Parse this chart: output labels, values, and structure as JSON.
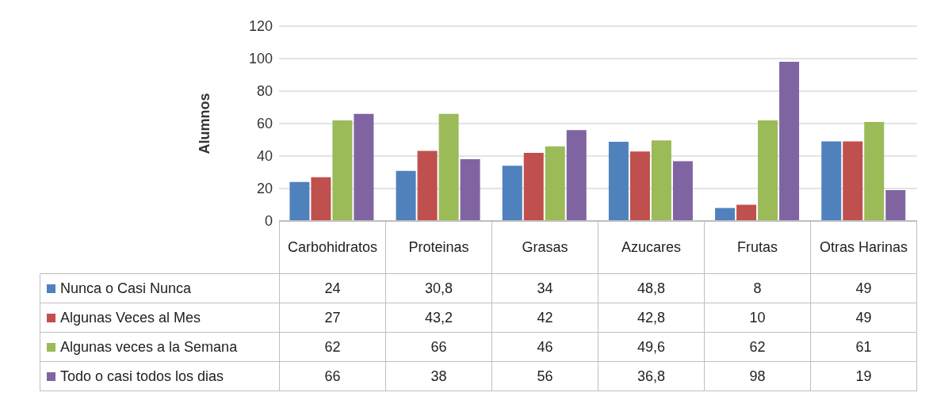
{
  "chart_data": {
    "type": "bar",
    "ylabel": "Alumnos",
    "categories": [
      "Carbohidratos",
      "Proteinas",
      "Grasas",
      "Azucares",
      "Frutas",
      "Otras Harinas"
    ],
    "series": [
      {
        "name": "Nunca o Casi Nunca",
        "color": "#4f81bd",
        "values": [
          24,
          30.8,
          34,
          48.8,
          8,
          49
        ],
        "value_labels": [
          "24",
          "30,8",
          "34",
          "48,8",
          "8",
          "49"
        ]
      },
      {
        "name": "Algunas Veces al Mes",
        "color": "#c0504d",
        "values": [
          27,
          43.2,
          42,
          42.8,
          10,
          49
        ],
        "value_labels": [
          "27",
          "43,2",
          "42",
          "42,8",
          "10",
          "49"
        ]
      },
      {
        "name": "Algunas veces a la Semana",
        "color": "#9bbb59",
        "values": [
          62,
          66,
          46,
          49.6,
          62,
          61
        ],
        "value_labels": [
          "62",
          "66",
          "46",
          "49,6",
          "62",
          "61"
        ]
      },
      {
        "name": "Todo o casi todos los dias",
        "color": "#8064a2",
        "values": [
          66,
          38,
          56,
          36.8,
          98,
          19
        ],
        "value_labels": [
          "66",
          "38",
          "56",
          "36,8",
          "98",
          "19"
        ]
      }
    ],
    "ylim": [
      0,
      120
    ],
    "yticks": [
      0,
      20,
      40,
      60,
      80,
      100,
      120
    ],
    "grid": "y",
    "legend": "left"
  }
}
